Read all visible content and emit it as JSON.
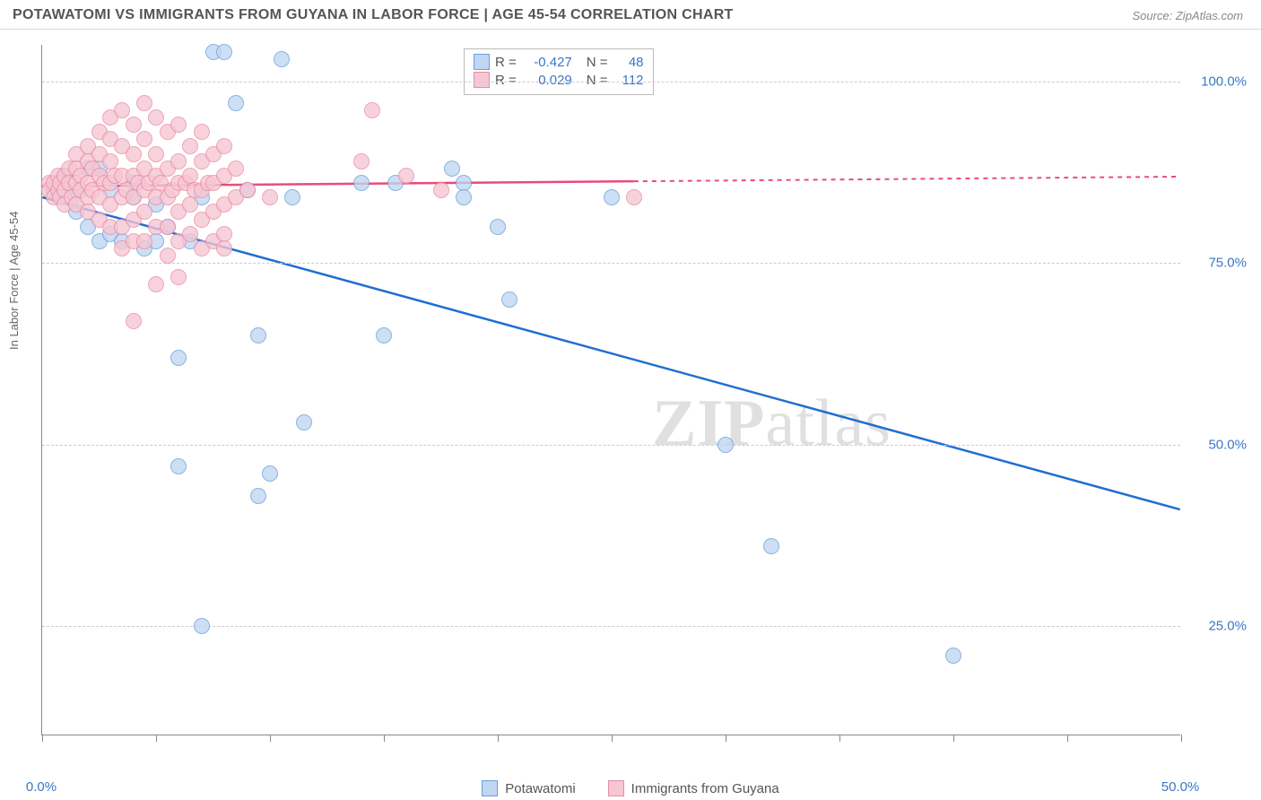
{
  "header": {
    "title": "POTAWATOMI VS IMMIGRANTS FROM GUYANA IN LABOR FORCE | AGE 45-54 CORRELATION CHART",
    "source": "Source: ZipAtlas.com"
  },
  "chart": {
    "type": "scatter",
    "ylabel": "In Labor Force | Age 45-54",
    "xlim": [
      0,
      50
    ],
    "ylim": [
      10,
      105
    ],
    "xtick_positions": [
      0,
      5,
      10,
      15,
      20,
      25,
      30,
      35,
      40,
      45,
      50
    ],
    "xtick_labels": {
      "0": "0.0%",
      "50": "50.0%"
    },
    "ytick_values": [
      25,
      50,
      75,
      100
    ],
    "ytick_labels": [
      "25.0%",
      "50.0%",
      "75.0%",
      "100.0%"
    ],
    "grid_color": "#cccccc",
    "background_color": "#ffffff",
    "series": [
      {
        "name": "Potawatomi",
        "fill_color": "#bfd7f2",
        "stroke_color": "#6a9fd8",
        "line_color": "#1f6fd0",
        "marker_radius": 9,
        "r_value": "-0.427",
        "n_value": "48",
        "regression": {
          "x1": 0,
          "y1": 84,
          "x2": 50,
          "y2": 41,
          "dash_after_x": 50
        },
        "points": [
          [
            0.5,
            86
          ],
          [
            0.5,
            85
          ],
          [
            1,
            84
          ],
          [
            1,
            87
          ],
          [
            1.5,
            85
          ],
          [
            1.5,
            82
          ],
          [
            2,
            88
          ],
          [
            2,
            80
          ],
          [
            2.5,
            78
          ],
          [
            2.5,
            88
          ],
          [
            3,
            85
          ],
          [
            3,
            79
          ],
          [
            3.5,
            78
          ],
          [
            4,
            84
          ],
          [
            4,
            86
          ],
          [
            4.5,
            77
          ],
          [
            5,
            78
          ],
          [
            5,
            83
          ],
          [
            5.5,
            80
          ],
          [
            6,
            62
          ],
          [
            6,
            47
          ],
          [
            6.5,
            78
          ],
          [
            7,
            84
          ],
          [
            7,
            25
          ],
          [
            7.5,
            104
          ],
          [
            8,
            104
          ],
          [
            8.5,
            97
          ],
          [
            9,
            85
          ],
          [
            9.5,
            43
          ],
          [
            9.5,
            65
          ],
          [
            10,
            46
          ],
          [
            10.5,
            103
          ],
          [
            11,
            84
          ],
          [
            11.5,
            53
          ],
          [
            14,
            86
          ],
          [
            15,
            65
          ],
          [
            15.5,
            86
          ],
          [
            18,
            88
          ],
          [
            18.5,
            86
          ],
          [
            18.5,
            84
          ],
          [
            20,
            80
          ],
          [
            20.5,
            70
          ],
          [
            25,
            84
          ],
          [
            30,
            50
          ],
          [
            32,
            36
          ],
          [
            40,
            21
          ]
        ]
      },
      {
        "name": "Immigrants from Guyana",
        "fill_color": "#f6c6d3",
        "stroke_color": "#e88ca5",
        "line_color": "#e94b7a",
        "marker_radius": 9,
        "r_value": "0.029",
        "n_value": "112",
        "regression": {
          "x1": 0,
          "y1": 85.5,
          "x2": 26,
          "y2": 86.2,
          "dash_after_x": 26
        },
        "points": [
          [
            0.3,
            86
          ],
          [
            0.3,
            85
          ],
          [
            0.5,
            86
          ],
          [
            0.5,
            84
          ],
          [
            0.7,
            87
          ],
          [
            0.7,
            85
          ],
          [
            0.8,
            86
          ],
          [
            0.8,
            84
          ],
          [
            1,
            87
          ],
          [
            1,
            85
          ],
          [
            1,
            83
          ],
          [
            1.2,
            88
          ],
          [
            1.2,
            86
          ],
          [
            1.3,
            84
          ],
          [
            1.5,
            90
          ],
          [
            1.5,
            88
          ],
          [
            1.5,
            86
          ],
          [
            1.5,
            83
          ],
          [
            1.7,
            87
          ],
          [
            1.7,
            85
          ],
          [
            2,
            91
          ],
          [
            2,
            89
          ],
          [
            2,
            86
          ],
          [
            2,
            84
          ],
          [
            2,
            82
          ],
          [
            2.2,
            88
          ],
          [
            2.2,
            85
          ],
          [
            2.5,
            93
          ],
          [
            2.5,
            90
          ],
          [
            2.5,
            87
          ],
          [
            2.5,
            84
          ],
          [
            2.5,
            81
          ],
          [
            2.7,
            86
          ],
          [
            3,
            95
          ],
          [
            3,
            92
          ],
          [
            3,
            89
          ],
          [
            3,
            86
          ],
          [
            3,
            83
          ],
          [
            3,
            80
          ],
          [
            3.2,
            87
          ],
          [
            3.5,
            96
          ],
          [
            3.5,
            91
          ],
          [
            3.5,
            87
          ],
          [
            3.5,
            84
          ],
          [
            3.5,
            80
          ],
          [
            3.5,
            77
          ],
          [
            3.7,
            85
          ],
          [
            4,
            94
          ],
          [
            4,
            90
          ],
          [
            4,
            87
          ],
          [
            4,
            84
          ],
          [
            4,
            81
          ],
          [
            4,
            78
          ],
          [
            4,
            67
          ],
          [
            4.2,
            86
          ],
          [
            4.5,
            97
          ],
          [
            4.5,
            92
          ],
          [
            4.5,
            88
          ],
          [
            4.5,
            85
          ],
          [
            4.5,
            82
          ],
          [
            4.5,
            78
          ],
          [
            4.7,
            86
          ],
          [
            5,
            95
          ],
          [
            5,
            90
          ],
          [
            5,
            87
          ],
          [
            5,
            84
          ],
          [
            5,
            80
          ],
          [
            5,
            72
          ],
          [
            5.2,
            86
          ],
          [
            5.5,
            93
          ],
          [
            5.5,
            88
          ],
          [
            5.5,
            84
          ],
          [
            5.5,
            80
          ],
          [
            5.5,
            76
          ],
          [
            5.7,
            85
          ],
          [
            6,
            94
          ],
          [
            6,
            89
          ],
          [
            6,
            86
          ],
          [
            6,
            82
          ],
          [
            6,
            78
          ],
          [
            6,
            73
          ],
          [
            6.3,
            86
          ],
          [
            6.5,
            91
          ],
          [
            6.5,
            87
          ],
          [
            6.5,
            83
          ],
          [
            6.5,
            79
          ],
          [
            6.7,
            85
          ],
          [
            7,
            93
          ],
          [
            7,
            89
          ],
          [
            7,
            85
          ],
          [
            7,
            81
          ],
          [
            7,
            77
          ],
          [
            7.3,
            86
          ],
          [
            7.5,
            90
          ],
          [
            7.5,
            86
          ],
          [
            7.5,
            82
          ],
          [
            7.5,
            78
          ],
          [
            8,
            91
          ],
          [
            8,
            87
          ],
          [
            8,
            83
          ],
          [
            8,
            79
          ],
          [
            8,
            77
          ],
          [
            8.5,
            88
          ],
          [
            8.5,
            84
          ],
          [
            9,
            85
          ],
          [
            10,
            84
          ],
          [
            14,
            89
          ],
          [
            14.5,
            96
          ],
          [
            16,
            87
          ],
          [
            17.5,
            85
          ],
          [
            26,
            84
          ]
        ]
      }
    ]
  },
  "legend_bottom": [
    {
      "label": "Potawatomi",
      "fill": "#bfd7f2",
      "stroke": "#6a9fd8"
    },
    {
      "label": "Immigrants from Guyana",
      "fill": "#f6c6d3",
      "stroke": "#e88ca5"
    }
  ],
  "watermark": {
    "bold": "ZIP",
    "rest": "atlas"
  }
}
